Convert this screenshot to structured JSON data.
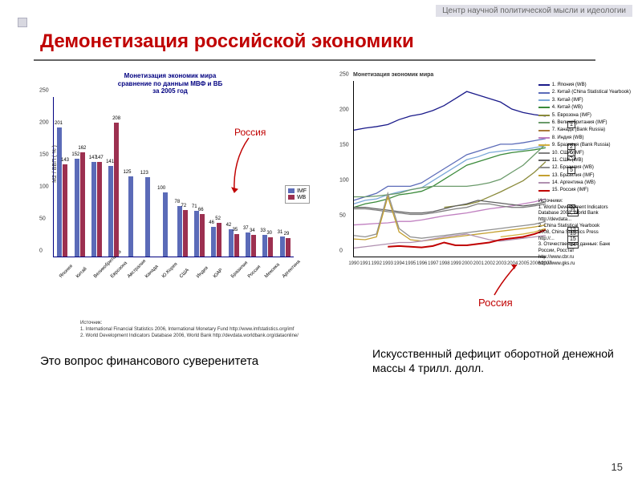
{
  "header": {
    "org": "Центр научной политической мысли и идеологии",
    "title": "Демонетизация российской экономики",
    "slide_number": "15"
  },
  "left_chart": {
    "type": "bar",
    "title_line1": "Монетизация экономик мира",
    "title_line2": "сравнение по данным МВФ и ВБ",
    "title_line3": "за 2005 год",
    "ylabel": "М2 / ВВП ( % )",
    "ylim": [
      0,
      250
    ],
    "ytick_step": 50,
    "colors": {
      "imf": "#5b6bb8",
      "wb": "#9c3050"
    },
    "legend": [
      "IMF",
      "WB"
    ],
    "categories": [
      "Япония",
      "Китай",
      "Великобритания",
      "Еврозона",
      "Австралия",
      "Канада",
      "Ю.Корея",
      "США",
      "Индия",
      "ЮАР",
      "Бразилия",
      "Россия",
      "Мексика",
      "Аргентина"
    ],
    "imf_values": [
      201,
      152,
      147,
      141,
      125,
      123,
      100,
      78,
      71,
      46,
      42,
      37,
      33,
      31
    ],
    "wb_values": [
      143,
      162,
      147,
      208,
      null,
      null,
      null,
      72,
      66,
      52,
      35,
      34,
      30,
      29
    ],
    "arrow_label": "Россия",
    "footnote1": "Источник:",
    "footnote2": "1. International Financial Statistics 2006, International Monetary Fund http://www.imfstatistics.org/imf",
    "footnote3": "2. World Development Indicators Database 2006, World Bank http://devdata.worldbank.org/dataonline/"
  },
  "right_chart": {
    "type": "line",
    "title": "Монетизация экономик мира",
    "ylim": [
      0,
      250
    ],
    "ytick_step": 50,
    "years": [
      1990,
      1991,
      1992,
      1993,
      1994,
      1995,
      1996,
      1997,
      1998,
      1999,
      2000,
      2001,
      2002,
      2003,
      2004,
      2005,
      2006,
      2007
    ],
    "series": [
      {
        "id": 1,
        "label": "1. Япония (WB)",
        "color": "#1a1a8a",
        "values": [
          180,
          183,
          185,
          188,
          195,
          200,
          203,
          208,
          215,
          225,
          235,
          230,
          225,
          220,
          210,
          205,
          202,
          200
        ]
      },
      {
        "id": 2,
        "label": "2. Китай (China Statistical Yearbook)",
        "color": "#5b6bb8",
        "values": [
          80,
          85,
          90,
          100,
          100,
          100,
          105,
          115,
          125,
          135,
          145,
          150,
          155,
          160,
          160,
          162,
          165,
          168
        ]
      },
      {
        "id": 3,
        "label": "3. Китай (IMF)",
        "color": "#7aa7d8",
        "values": [
          75,
          80,
          82,
          88,
          92,
          95,
          98,
          108,
          118,
          128,
          138,
          142,
          148,
          150,
          152,
          152,
          155,
          158
        ]
      },
      {
        "id": 4,
        "label": "4. Китай (WB)",
        "color": "#3a8a3a",
        "values": [
          70,
          75,
          78,
          82,
          88,
          90,
          93,
          100,
          110,
          120,
          130,
          135,
          140,
          145,
          148,
          150,
          152,
          155
        ]
      },
      {
        "id": 5,
        "label": "5. Еврозона (IMF)",
        "color": "#8a8a3a",
        "values": [
          null,
          null,
          null,
          null,
          null,
          null,
          null,
          null,
          70,
          72,
          74,
          78,
          85,
          92,
          100,
          108,
          120,
          135
        ]
      },
      {
        "id": 6,
        "label": "6. Великобритания (IMF)",
        "color": "#6a9a6a",
        "values": [
          85,
          85,
          86,
          88,
          90,
          95,
          98,
          100,
          100,
          100,
          100,
          102,
          105,
          110,
          120,
          130,
          145,
          160
        ]
      },
      {
        "id": 7,
        "label": "7. Канада (Bank Russia)",
        "color": "#aa7a3a",
        "values": [
          null,
          null,
          null,
          null,
          null,
          null,
          null,
          null,
          null,
          null,
          null,
          null,
          null,
          null,
          null,
          null,
          null,
          null
        ]
      },
      {
        "id": 8,
        "label": "8. Индия (WB)",
        "color": "#c080c0",
        "values": [
          45,
          46,
          47,
          48,
          50,
          50,
          52,
          55,
          58,
          60,
          62,
          65,
          68,
          70,
          72,
          75,
          78,
          82
        ]
      },
      {
        "id": 9,
        "label": "9. Бразилия (Bank Russia)",
        "color": "#d4b040",
        "values": [
          null,
          null,
          null,
          null,
          null,
          null,
          null,
          null,
          null,
          null,
          null,
          null,
          null,
          28,
          30,
          32,
          35,
          40
        ]
      },
      {
        "id": 10,
        "label": "10. США (IMF)",
        "color": "#808080",
        "values": [
          68,
          68,
          66,
          64,
          62,
          60,
          60,
          62,
          65,
          68,
          70,
          75,
          75,
          72,
          70,
          70,
          72,
          75
        ]
      },
      {
        "id": 11,
        "label": "11. США (WB)",
        "color": "#606060",
        "values": [
          70,
          70,
          68,
          66,
          64,
          62,
          62,
          64,
          68,
          72,
          75,
          80,
          78,
          76,
          74,
          72,
          74,
          78
        ]
      },
      {
        "id": 12,
        "label": "12. Бразилия (WB)",
        "color": "#909090",
        "values": [
          30,
          28,
          32,
          90,
          40,
          28,
          26,
          28,
          30,
          32,
          34,
          36,
          38,
          40,
          42,
          44,
          46,
          50
        ]
      },
      {
        "id": 13,
        "label": "13. Бразилия (IMF)",
        "color": "#c4a030",
        "values": [
          25,
          24,
          28,
          85,
          35,
          24,
          22,
          24,
          26,
          28,
          30,
          32,
          34,
          36,
          38,
          40,
          42,
          45
        ]
      },
      {
        "id": 14,
        "label": "14. Аргентина (WB)",
        "color": "#b090b0",
        "values": [
          12,
          14,
          16,
          18,
          20,
          20,
          22,
          25,
          28,
          30,
          32,
          28,
          24,
          22,
          24,
          26,
          28,
          30
        ]
      },
      {
        "id": 15,
        "label": "15. Россия (IMF)",
        "color": "#c00000",
        "values": [
          null,
          null,
          null,
          14,
          15,
          14,
          13,
          15,
          20,
          16,
          16,
          18,
          20,
          24,
          26,
          28,
          32,
          38
        ]
      }
    ],
    "legend_sources": "Источники:\n1. World Development Indicators Database 2008, World Bank http://devdata...\n2. China Statistical Yearbook 2008, China Statistics Press http://...\n3. Отечественные данные: Банк России, Росстат http://www.cbr.ru http://www.gks.ru",
    "arrow_label": "Россия"
  },
  "captions": {
    "left": "Это вопрос финансового суверенитета",
    "right": "Искусственный дефицит оборотной денежной массы 4 трилл. долл."
  }
}
